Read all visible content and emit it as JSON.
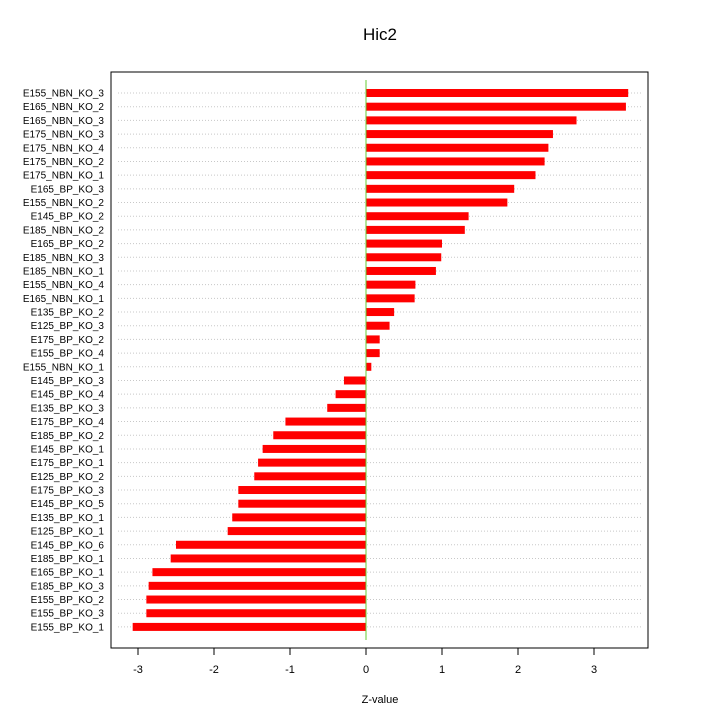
{
  "chart_data": {
    "type": "bar",
    "orientation": "horizontal",
    "title": "Hic2",
    "xlabel": "Z-value",
    "ylabel": "",
    "xlim": [
      -3.3,
      3.7
    ],
    "xticks": [
      -3,
      -2,
      -1,
      0,
      1,
      2,
      3
    ],
    "grid": true,
    "zero_line": true,
    "colors": {
      "bar": "#ff0000",
      "zero_line": "#66cc33",
      "grid": "#c8c8c8",
      "frame": "#000000"
    },
    "categories": [
      "E155_NBN_KO_3",
      "E165_NBN_KO_2",
      "E165_NBN_KO_3",
      "E175_NBN_KO_3",
      "E175_NBN_KO_4",
      "E175_NBN_KO_2",
      "E175_NBN_KO_1",
      "E165_BP_KO_3",
      "E155_NBN_KO_2",
      "E145_BP_KO_2",
      "E185_NBN_KO_2",
      "E165_BP_KO_2",
      "E185_NBN_KO_3",
      "E185_NBN_KO_1",
      "E155_NBN_KO_4",
      "E165_NBN_KO_1",
      "E135_BP_KO_2",
      "E125_BP_KO_3",
      "E175_BP_KO_2",
      "E155_BP_KO_4",
      "E155_NBN_KO_1",
      "E145_BP_KO_3",
      "E145_BP_KO_4",
      "E135_BP_KO_3",
      "E175_BP_KO_4",
      "E185_BP_KO_2",
      "E145_BP_KO_1",
      "E175_BP_KO_1",
      "E125_BP_KO_2",
      "E175_BP_KO_3",
      "E145_BP_KO_5",
      "E135_BP_KO_1",
      "E125_BP_KO_1",
      "E145_BP_KO_6",
      "E185_BP_KO_1",
      "E165_BP_KO_1",
      "E185_BP_KO_3",
      "E155_BP_KO_2",
      "E155_BP_KO_3",
      "E155_BP_KO_1"
    ],
    "values": [
      3.45,
      3.42,
      2.77,
      2.46,
      2.4,
      2.35,
      2.23,
      1.95,
      1.86,
      1.35,
      1.3,
      1.0,
      0.99,
      0.92,
      0.65,
      0.64,
      0.37,
      0.31,
      0.18,
      0.18,
      0.07,
      -0.29,
      -0.4,
      -0.51,
      -1.06,
      -1.22,
      -1.36,
      -1.42,
      -1.47,
      -1.68,
      -1.68,
      -1.76,
      -1.82,
      -2.5,
      -2.57,
      -2.81,
      -2.86,
      -2.89,
      -2.89,
      -3.07
    ]
  }
}
